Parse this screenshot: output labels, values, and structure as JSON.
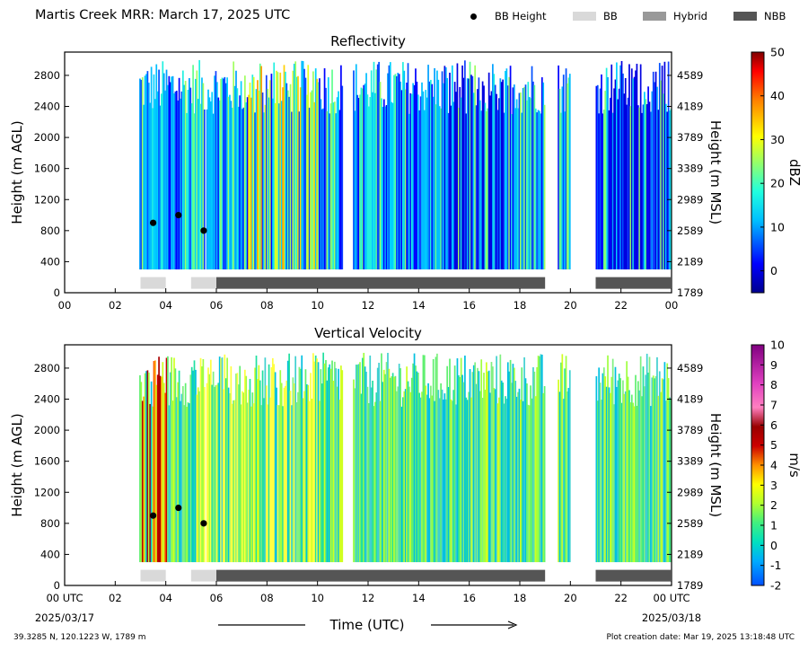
{
  "header": {
    "title": "Martis Creek MRR:  March 17, 2025 UTC",
    "legend": [
      {
        "label": "BB Height",
        "kind": "dot",
        "color": "#000000"
      },
      {
        "label": "BB",
        "kind": "swatch",
        "color": "#d9d9d9"
      },
      {
        "label": "Hybrid",
        "kind": "swatch",
        "color": "#999999"
      },
      {
        "label": "NBB",
        "kind": "swatch",
        "color": "#555555"
      }
    ]
  },
  "footer": {
    "location": "39.3285 N, 120.1223 W, 1789 m",
    "creation": "Plot creation date: Mar 19, 2025 13:18:48 UTC",
    "xlabel": "Time (UTC)",
    "start_date": "2025/03/17",
    "end_date": "2025/03/18"
  },
  "chart_data": [
    {
      "type": "heatmap",
      "title": "Reflectivity",
      "ylabel": "Height (m AGL)",
      "ylabel_right": "Height (m MSL)",
      "colorbar_label": "dBZ",
      "xlim": [
        0,
        24
      ],
      "ylim": [
        0,
        3100
      ],
      "x_ticks": [
        "00",
        "02",
        "04",
        "06",
        "08",
        "10",
        "12",
        "14",
        "16",
        "18",
        "20",
        "22",
        "00"
      ],
      "y_ticks": [
        0,
        400,
        800,
        1200,
        1600,
        2000,
        2400,
        2800
      ],
      "y_ticks_right": [
        1789,
        2189,
        2589,
        2989,
        3389,
        3789,
        4189,
        4589
      ],
      "colorbar_range": [
        -5,
        50
      ],
      "colorbar_ticks": [
        0,
        10,
        20,
        30,
        40,
        50
      ],
      "bb_height_points": [
        {
          "x": 3.5,
          "y": 900
        },
        {
          "x": 4.5,
          "y": 1000
        },
        {
          "x": 5.5,
          "y": 800
        }
      ],
      "bb_type_bars": [
        {
          "start": 3.0,
          "end": 4.0,
          "class": "BB"
        },
        {
          "start": 5.0,
          "end": 6.0,
          "class": "BB"
        },
        {
          "start": 6.0,
          "end": 19.0,
          "class": "NBB"
        },
        {
          "start": 21.0,
          "end": 24.0,
          "class": "NBB"
        }
      ]
    },
    {
      "type": "heatmap",
      "title": "Vertical Velocity",
      "ylabel": "Height (m AGL)",
      "ylabel_right": "Height (m MSL)",
      "colorbar_label": "m/s",
      "xlim": [
        0,
        24
      ],
      "ylim": [
        0,
        3100
      ],
      "x_ticks": [
        "00 UTC",
        "02",
        "04",
        "06",
        "08",
        "10",
        "12",
        "14",
        "16",
        "18",
        "20",
        "22",
        "00 UTC"
      ],
      "y_ticks": [
        0,
        400,
        800,
        1200,
        1600,
        2000,
        2400,
        2800
      ],
      "y_ticks_right": [
        1789,
        2189,
        2589,
        2989,
        3389,
        3789,
        4189,
        4589
      ],
      "colorbar_range": [
        -2,
        10
      ],
      "colorbar_ticks": [
        -2,
        -1,
        0,
        1,
        2,
        3,
        4,
        5,
        6,
        7,
        8,
        9,
        10
      ],
      "bb_height_points": [
        {
          "x": 3.5,
          "y": 900
        },
        {
          "x": 4.5,
          "y": 1000
        },
        {
          "x": 5.5,
          "y": 800
        }
      ],
      "bb_type_bars": [
        {
          "start": 3.0,
          "end": 4.0,
          "class": "BB"
        },
        {
          "start": 5.0,
          "end": 6.0,
          "class": "BB"
        },
        {
          "start": 6.0,
          "end": 19.0,
          "class": "NBB"
        },
        {
          "start": 21.0,
          "end": 24.0,
          "class": "NBB"
        }
      ]
    }
  ]
}
